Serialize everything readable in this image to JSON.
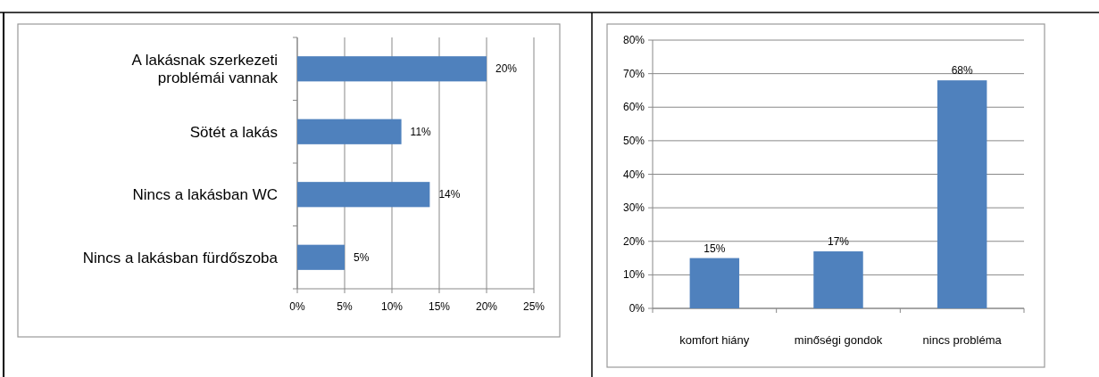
{
  "chart_data": [
    {
      "type": "bar",
      "orientation": "horizontal",
      "categories": [
        "A lakásnak szerkezeti problémái vannak",
        "Sötét a lakás",
        "Nincs a lakásban WC",
        "Nincs a lakásban fürdőszoba"
      ],
      "values": [
        20,
        11,
        14,
        5
      ],
      "value_labels": [
        "20%",
        "11%",
        "14%",
        "5%"
      ],
      "color": "#4f81bd",
      "xlim": [
        0,
        25
      ],
      "xticks": [
        {
          "value": 0,
          "label": "0%"
        },
        {
          "value": 5,
          "label": "5%"
        },
        {
          "value": 10,
          "label": "10%"
        },
        {
          "value": 15,
          "label": "15%"
        },
        {
          "value": 20,
          "label": "20%"
        },
        {
          "value": 25,
          "label": "25%"
        }
      ],
      "grid": "x"
    },
    {
      "type": "bar",
      "categories": [
        "komfort hiány",
        "minőségi gondok",
        "nincs probléma"
      ],
      "values": [
        15,
        17,
        68
      ],
      "value_labels": [
        "15%",
        "17%",
        "68%"
      ],
      "color": "#4f81bd",
      "ylim": [
        0,
        80
      ],
      "yticks": [
        {
          "value": 0,
          "label": "0%"
        },
        {
          "value": 10,
          "label": "10%"
        },
        {
          "value": 20,
          "label": "20%"
        },
        {
          "value": 30,
          "label": "30%"
        },
        {
          "value": 40,
          "label": "40%"
        },
        {
          "value": 50,
          "label": "50%"
        },
        {
          "value": 60,
          "label": "60%"
        },
        {
          "value": 70,
          "label": "70%"
        },
        {
          "value": 80,
          "label": "80%"
        }
      ],
      "grid": "y"
    }
  ]
}
